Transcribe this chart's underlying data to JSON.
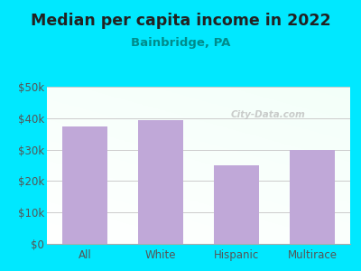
{
  "title": "Median per capita income in 2022",
  "subtitle": "Bainbridge, PA",
  "categories": [
    "All",
    "White",
    "Hispanic",
    "Multirace"
  ],
  "values": [
    37500,
    39500,
    25000,
    30000
  ],
  "bar_color": "#c0a8d8",
  "background_outer": "#00e8ff",
  "title_color": "#222222",
  "subtitle_color": "#008b8b",
  "tick_color": "#555555",
  "grid_color": "#cccccc",
  "ylim": [
    0,
    50000
  ],
  "yticks": [
    0,
    10000,
    20000,
    30000,
    40000,
    50000
  ],
  "ytick_labels": [
    "$0",
    "$10k",
    "$20k",
    "$30k",
    "$40k",
    "$50k"
  ],
  "watermark": "City-Data.com",
  "title_fontsize": 12.5,
  "subtitle_fontsize": 9.5,
  "tick_fontsize": 8.5
}
